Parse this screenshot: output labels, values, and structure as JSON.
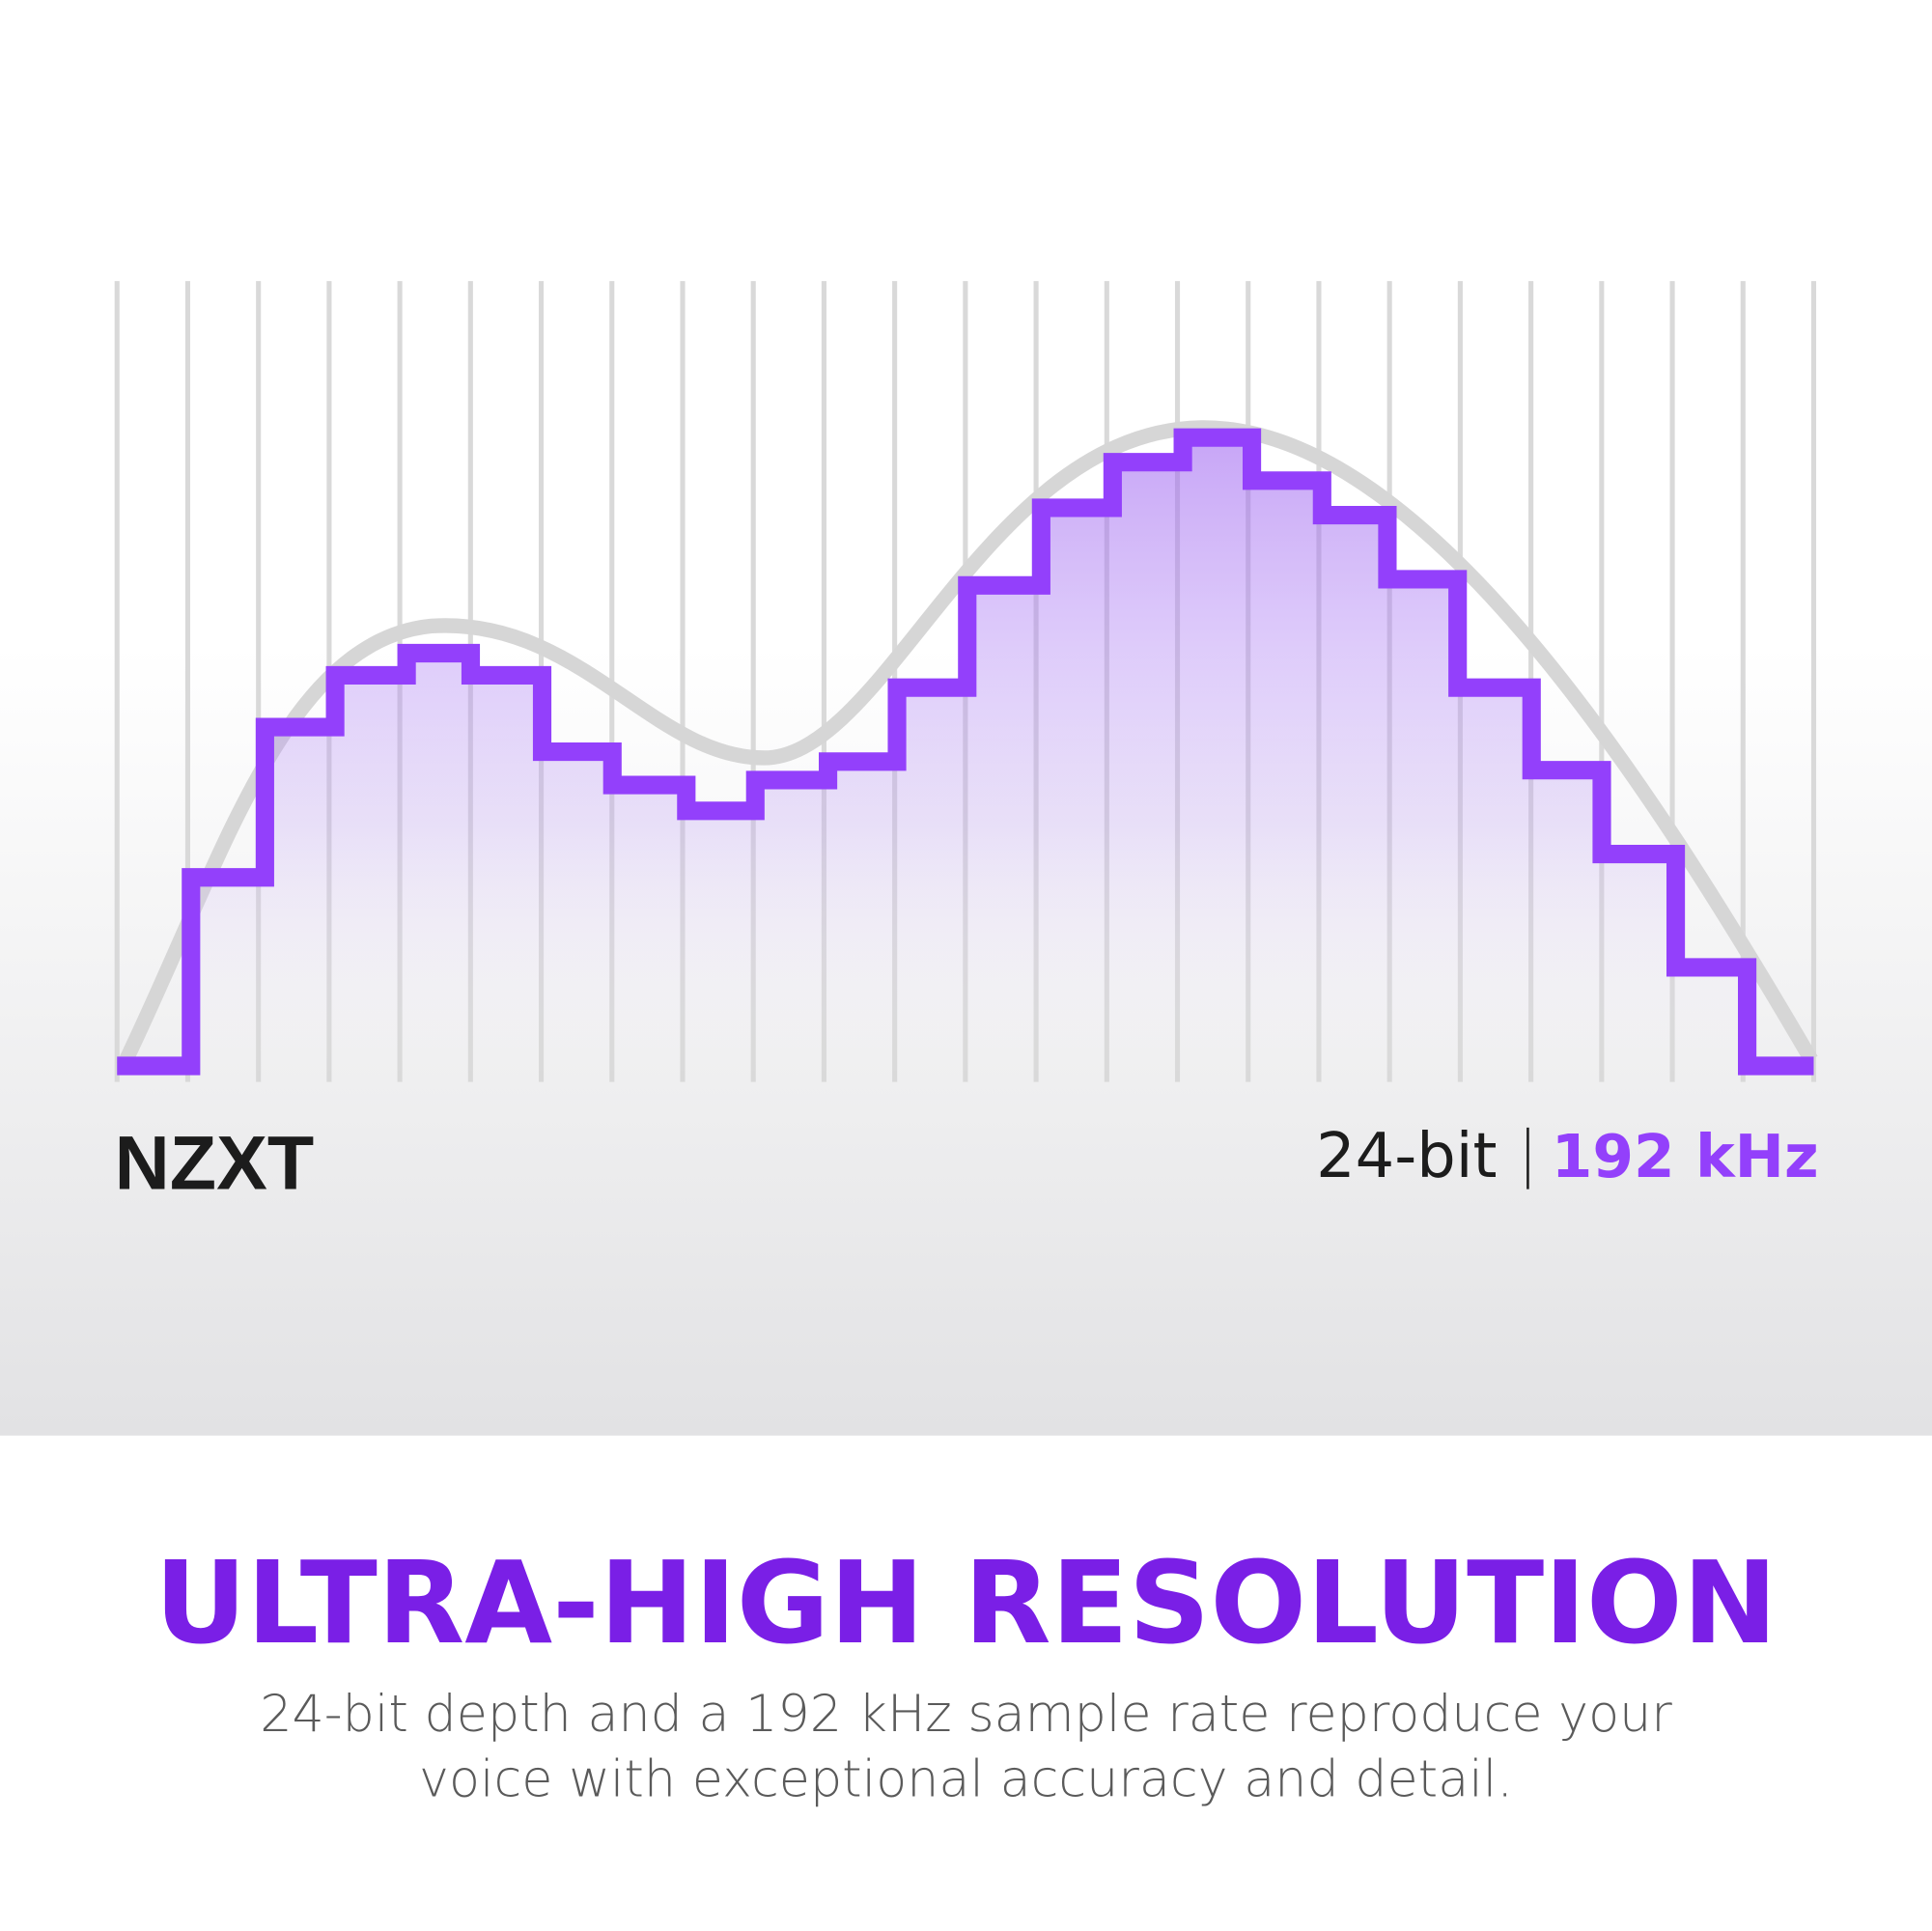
{
  "graphic": {
    "brand": "NZXT",
    "bit_depth": "24-bit",
    "sample_rate": "192 kHz"
  },
  "heading": "ULTRA-HIGH RESOLUTION",
  "description": [
    "24-bit depth and a 192 kHz sample rate reproduce your",
    "voice with exceptional accuracy and detail."
  ]
}
